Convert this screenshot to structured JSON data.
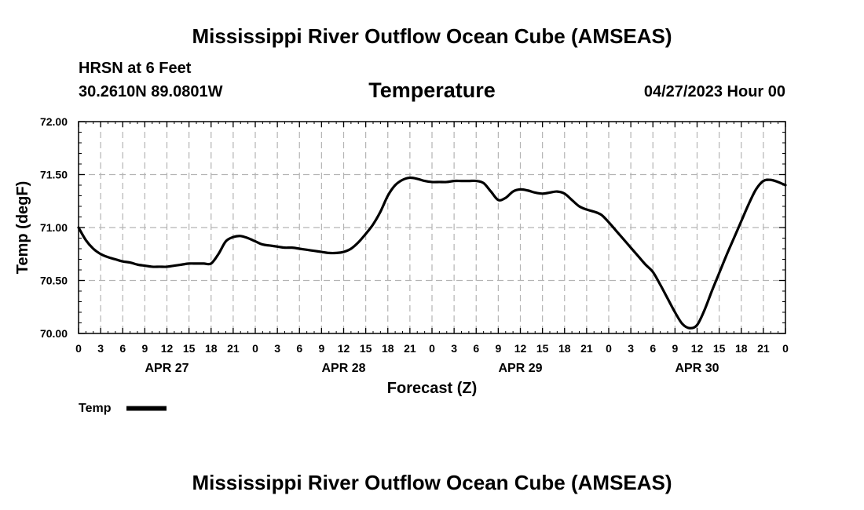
{
  "page": {
    "title_top": "Mississippi River Outflow Ocean Cube (AMSEAS)",
    "title_bottom": "Mississippi River Outflow Ocean Cube (AMSEAS)",
    "station": "HRSN at 6 Feet",
    "coordinates": "30.2610N  89.0801W",
    "variable": "Temperature",
    "datetime": "04/27/2023 Hour 00"
  },
  "chart_data": {
    "type": "line",
    "title": "Temperature",
    "xlabel": "Forecast (Z)",
    "ylabel": "Temp (degF)",
    "ylim": [
      70.0,
      72.0
    ],
    "xlim": [
      0,
      96
    ],
    "y_ticks": [
      "70.00",
      "70.50",
      "71.00",
      "71.50",
      "72.00"
    ],
    "x_tick_labels": [
      "0",
      "3",
      "6",
      "9",
      "12",
      "15",
      "18",
      "21",
      "0",
      "3",
      "6",
      "9",
      "12",
      "15",
      "18",
      "21",
      "0",
      "3",
      "6",
      "9",
      "12",
      "15",
      "18",
      "21",
      "0",
      "3",
      "6",
      "9",
      "12",
      "15",
      "18",
      "21",
      "0"
    ],
    "day_labels": [
      {
        "label": "APR 27",
        "hour": 12
      },
      {
        "label": "APR 28",
        "hour": 36
      },
      {
        "label": "APR 29",
        "hour": 60
      },
      {
        "label": "APR 30",
        "hour": 84
      }
    ],
    "grid": true,
    "legend": {
      "position": "bottom-left",
      "entries": [
        "Temp"
      ]
    },
    "series": [
      {
        "name": "Temp",
        "color": "#000000",
        "x": [
          0,
          1,
          2,
          3,
          4,
          5,
          6,
          7,
          8,
          9,
          10,
          11,
          12,
          13,
          14,
          15,
          16,
          17,
          18,
          19,
          20,
          21,
          22,
          23,
          24,
          25,
          26,
          27,
          28,
          29,
          30,
          31,
          32,
          33,
          34,
          35,
          36,
          37,
          38,
          39,
          40,
          41,
          42,
          43,
          44,
          45,
          46,
          47,
          48,
          49,
          50,
          51,
          52,
          53,
          54,
          55,
          56,
          57,
          58,
          59,
          60,
          61,
          62,
          63,
          64,
          65,
          66,
          67,
          68,
          69,
          70,
          71,
          72,
          73,
          74,
          75,
          76,
          77,
          78,
          79,
          80,
          81,
          82,
          83,
          84,
          85,
          86,
          87,
          88,
          89,
          90,
          91,
          92,
          93,
          94,
          95,
          96
        ],
        "values": [
          71.0,
          70.88,
          70.8,
          70.75,
          70.72,
          70.7,
          70.68,
          70.67,
          70.65,
          70.64,
          70.63,
          70.63,
          70.63,
          70.64,
          70.65,
          70.66,
          70.66,
          70.66,
          70.66,
          70.75,
          70.87,
          70.91,
          70.92,
          70.9,
          70.87,
          70.84,
          70.83,
          70.82,
          70.81,
          70.81,
          70.8,
          70.79,
          70.78,
          70.77,
          70.76,
          70.76,
          70.77,
          70.8,
          70.86,
          70.94,
          71.03,
          71.15,
          71.3,
          71.4,
          71.45,
          71.47,
          71.46,
          71.44,
          71.43,
          71.43,
          71.43,
          71.44,
          71.44,
          71.44,
          71.44,
          71.42,
          71.34,
          71.26,
          71.28,
          71.34,
          71.36,
          71.35,
          71.33,
          71.32,
          71.33,
          71.34,
          71.32,
          71.26,
          71.2,
          71.17,
          71.15,
          71.12,
          71.05,
          70.97,
          70.89,
          70.81,
          70.73,
          70.65,
          70.58,
          70.46,
          70.33,
          70.2,
          70.09,
          70.05,
          70.08,
          70.22,
          70.4,
          70.57,
          70.74,
          70.9,
          71.06,
          71.22,
          71.36,
          71.44,
          71.45,
          71.43,
          71.4
        ]
      }
    ]
  }
}
